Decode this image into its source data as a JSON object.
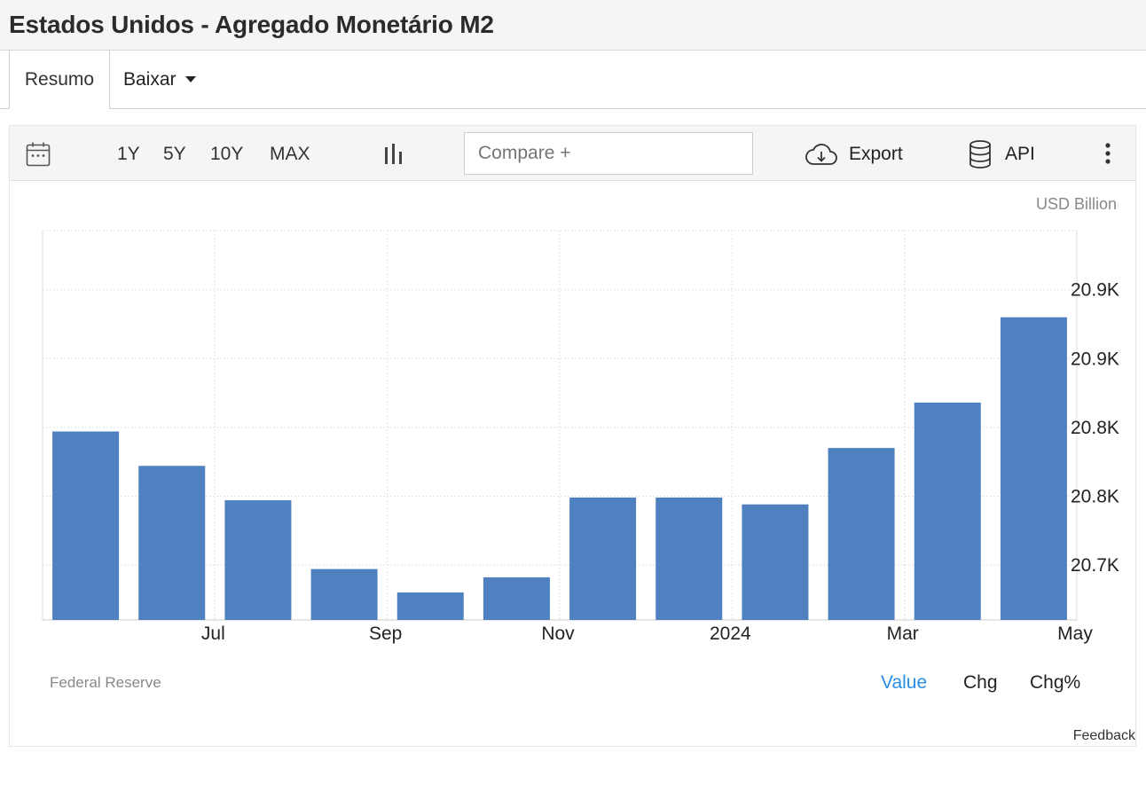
{
  "page_title": "Estados Unidos - Agregado Monetário M2",
  "tabs": {
    "resumo": "Resumo",
    "baixar": "Baixar"
  },
  "toolbar": {
    "ranges": [
      "1Y",
      "5Y",
      "10Y",
      "MAX"
    ],
    "compare_placeholder": "Compare +",
    "export_label": "Export",
    "api_label": "API"
  },
  "footer": {
    "source": "Federal Reserve",
    "modes": [
      "Value",
      "Chg",
      "Chg%"
    ],
    "active_mode": "Value",
    "feedback": "Feedback"
  },
  "colors": {
    "bar": "#4f81c0",
    "active_mode": "#2a8ee6"
  },
  "chart_data": {
    "type": "bar",
    "unit": "USD Billion",
    "months": [
      "2023-06",
      "2023-07",
      "2023-08",
      "2023-09",
      "2023-10",
      "2023-11",
      "2023-12",
      "2024-01",
      "2024-02",
      "2024-03",
      "2024-04",
      "2024-05"
    ],
    "x_tick_labels": [
      {
        "month": "2023-07",
        "label": "Jul"
      },
      {
        "month": "2023-09",
        "label": "Sep"
      },
      {
        "month": "2023-11",
        "label": "Nov"
      },
      {
        "month": "2024-01",
        "label": "2024"
      },
      {
        "month": "2024-03",
        "label": "Mar"
      },
      {
        "month": "2024-05",
        "label": "May"
      }
    ],
    "values": [
      20797,
      20772,
      20747,
      20697,
      20680,
      20691,
      20749,
      20749,
      20744,
      20785,
      20818,
      20880
    ],
    "ylim": [
      20660,
      20943
    ],
    "y_ticks": [
      {
        "value": 20700,
        "label": "20.7K"
      },
      {
        "value": 20750,
        "label": "20.8K"
      },
      {
        "value": 20800,
        "label": "20.8K"
      },
      {
        "value": 20850,
        "label": "20.9K"
      },
      {
        "value": 20900,
        "label": "20.9K"
      }
    ],
    "y_axis_side": "right",
    "grid": true
  }
}
